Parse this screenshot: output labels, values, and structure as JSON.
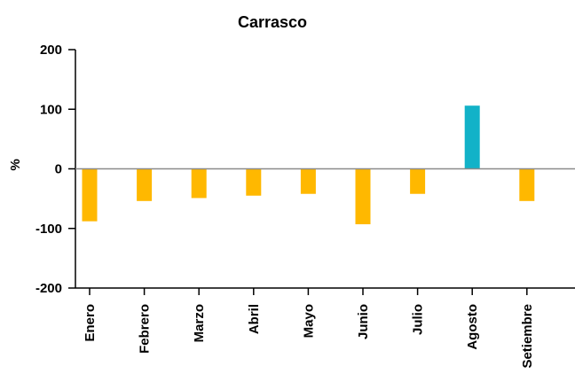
{
  "chart_data": {
    "type": "bar",
    "title": "Carrasco",
    "ylabel": "%",
    "xlabel": "",
    "ylim": [
      -200,
      200
    ],
    "yticks": [
      200,
      100,
      0,
      -100,
      -200
    ],
    "categories": [
      "Enero",
      "Febrero",
      "Marzo",
      "Abril",
      "Mayo",
      "Junio",
      "Julio",
      "Agosto",
      "Setiembre"
    ],
    "values": [
      -88,
      -54,
      -49,
      -45,
      -42,
      -93,
      -42,
      106,
      -54
    ],
    "grid": false,
    "colors": {
      "negative": "#FFB800",
      "positive": "#12B2C8",
      "zero_line": "#8a8a8a",
      "axis": "#000000"
    }
  }
}
